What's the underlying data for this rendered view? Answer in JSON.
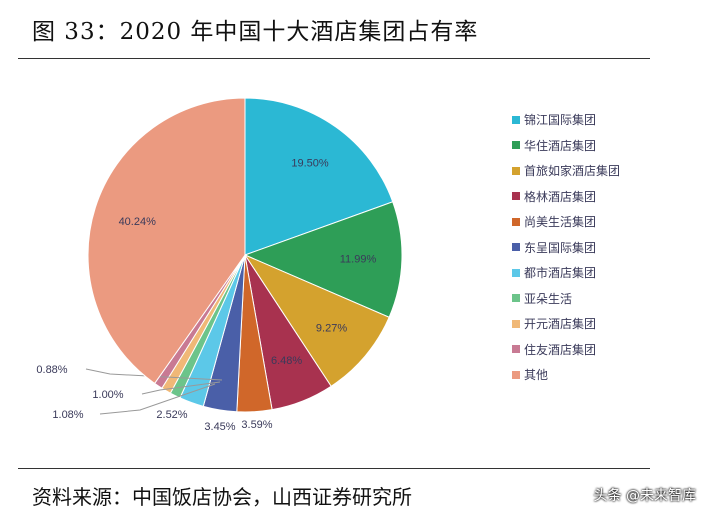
{
  "title": "图 33：2020 年中国十大酒店集团占有率",
  "source": "资料来源：中国饭店协会，山西证券研究所",
  "watermark": "头条 @未来智库",
  "chart_data": {
    "type": "pie",
    "title": "",
    "start": "12 o'clock, clockwise",
    "legend_position": "right",
    "slices": [
      {
        "name": "锦江国际集团",
        "value": 19.5,
        "label": "19.50%",
        "color": "#2bb8d4"
      },
      {
        "name": "华住酒店集团",
        "value": 11.99,
        "label": "11.99%",
        "color": "#2e9e57"
      },
      {
        "name": "首旅如家酒店集团",
        "value": 9.27,
        "label": "9.27%",
        "color": "#d4a22e"
      },
      {
        "name": "格林酒店集团",
        "value": 6.48,
        "label": "6.48%",
        "color": "#a8324f"
      },
      {
        "name": "尚美生活集团",
        "value": 3.59,
        "label": "3.59%",
        "color": "#d0672a"
      },
      {
        "name": "东呈国际集团",
        "value": 3.45,
        "label": "3.45%",
        "color": "#4a5fa8"
      },
      {
        "name": "都市酒店集团",
        "value": 2.52,
        "label": "2.52%",
        "color": "#5cc8e8"
      },
      {
        "name": "亚朵生活",
        "value": 1.08,
        "label": "1.08%",
        "color": "#6cc48a"
      },
      {
        "name": "开元酒店集团",
        "value": 1.0,
        "label": "1.00%",
        "color": "#f0b877"
      },
      {
        "name": "住友酒店集团",
        "value": 0.88,
        "label": "0.88%",
        "color": "#c87a93"
      },
      {
        "name": "其他",
        "value": 40.24,
        "label": "40.24%",
        "color": "#eb9a80"
      }
    ]
  }
}
